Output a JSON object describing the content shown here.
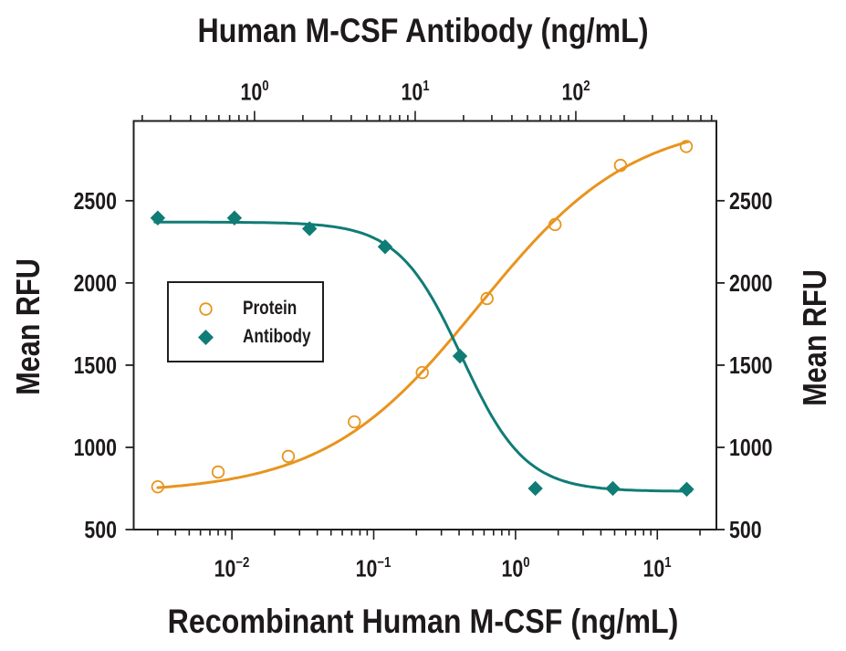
{
  "chart_data": {
    "type": "scatter",
    "title": "Human M-CSF Antibody (ng/mL)",
    "grid": false,
    "background": "#FFFFFF",
    "axis_color": "#221E1F",
    "text_color": "#1E1A1B",
    "top_axis": {
      "title": "Human M-CSF Antibody (ng/mL)",
      "scale": "log",
      "lim": [
        0.177,
        750
      ],
      "tick_exponents": [
        0,
        1,
        2
      ],
      "units": "ng/mL"
    },
    "bottom_axis": {
      "title": "Recombinant Human M-CSF (ng/mL)",
      "scale": "log",
      "lim": [
        0.00203,
        26.1
      ],
      "tick_exponents": [
        -2,
        -1,
        0,
        1
      ],
      "units": "ng/mL"
    },
    "left_axis": {
      "title": "Mean RFU",
      "lim": [
        500,
        2985
      ],
      "ticks": [
        500,
        1000,
        1500,
        2000,
        2500
      ]
    },
    "right_axis": {
      "title": "Mean RFU",
      "lim": [
        500,
        2985
      ],
      "ticks": [
        500,
        1000,
        1500,
        2000,
        2500
      ]
    },
    "legend": {
      "position": "left-middle",
      "entries": [
        "Protein",
        "Antibody"
      ]
    },
    "series": [
      {
        "name": "Protein",
        "marker": "open-circle",
        "color": "#E8941E",
        "x_axis": "bottom",
        "points": [
          [
            0.003,
            760
          ],
          [
            0.008,
            850
          ],
          [
            0.025,
            945
          ],
          [
            0.073,
            1155
          ],
          [
            0.22,
            1455
          ],
          [
            0.63,
            1905
          ],
          [
            1.9,
            2355
          ],
          [
            5.5,
            2715
          ],
          [
            16,
            2830
          ]
        ],
        "fit": {
          "bottom": 720,
          "top": 3000,
          "mid": 0.55,
          "hill": 0.8,
          "decreasing": false,
          "range": [
            0.003,
            16.5
          ]
        }
      },
      {
        "name": "Antibody",
        "marker": "filled-diamond",
        "color": "#107C76",
        "x_axis": "top",
        "points": [
          [
            0.25,
            2395
          ],
          [
            0.75,
            2395
          ],
          [
            2.2,
            2330
          ],
          [
            6.5,
            2220
          ],
          [
            19,
            1555
          ],
          [
            56,
            750
          ],
          [
            170,
            750
          ],
          [
            490,
            745
          ]
        ],
        "fit": {
          "bottom": 732,
          "top": 2370,
          "mid": 19.5,
          "hill": 2.2,
          "decreasing": true,
          "range": [
            0.24,
            520
          ]
        }
      }
    ]
  }
}
